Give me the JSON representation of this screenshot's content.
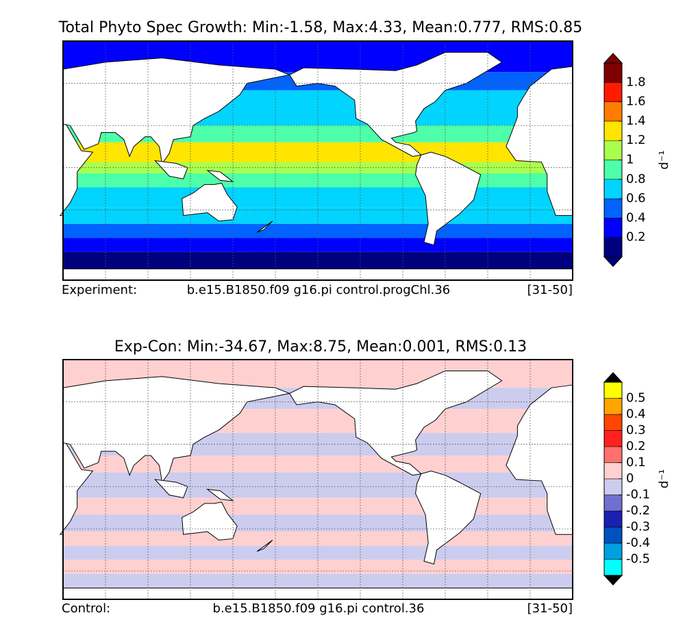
{
  "panels": [
    {
      "title": "Total Phyto Spec Growth: Min:-1.58, Max:4.33, Mean:0.777, RMS:0.85",
      "footer": {
        "left": "Experiment:",
        "center": "b.e15.B1850.f09 g16.pi control.progChl.36",
        "right": "[31-50]"
      },
      "colorbar": {
        "label": "d⁻¹",
        "levels": [
          0,
          0.2,
          0.4,
          0.6,
          0.8,
          1,
          1.2,
          1.4,
          1.6,
          1.8,
          2
        ],
        "colors": [
          "#00007f",
          "#0000ff",
          "#0063ff",
          "#00d4ff",
          "#4dffa9",
          "#a9ff4d",
          "#ffe500",
          "#ff7c00",
          "#ff1a00",
          "#7f0000"
        ],
        "under_color": "#00007f",
        "over_color": "#7f0000",
        "ticks": [
          0.2,
          0.4,
          0.6,
          0.8,
          1,
          1.2,
          1.4,
          1.6,
          1.8
        ]
      }
    },
    {
      "title": "Exp-Con: Min:-34.67, Max:8.75, Mean:0.001, RMS:0.13",
      "footer": {
        "left": "Control:",
        "center": "b.e15.B1850.f09 g16.pi control.36",
        "right": "[31-50]"
      },
      "colorbar": {
        "label": "d⁻¹",
        "levels": [
          -0.6,
          -0.5,
          -0.4,
          -0.3,
          -0.2,
          -0.1,
          0,
          0.1,
          0.2,
          0.3,
          0.4,
          0.5,
          0.6
        ],
        "colors": [
          "#00ffff",
          "#00a0e0",
          "#0050c0",
          "#1a20b0",
          "#7070d0",
          "#ccccee",
          "#ffd0d0",
          "#ff7070",
          "#ff2020",
          "#ff4500",
          "#ffa500",
          "#ffff00"
        ],
        "under_color": "#000000",
        "over_color": "#000000",
        "ticks": [
          -0.5,
          -0.4,
          -0.3,
          -0.2,
          -0.1,
          0,
          0.1,
          0.2,
          0.3,
          0.4,
          0.5
        ]
      }
    }
  ]
}
